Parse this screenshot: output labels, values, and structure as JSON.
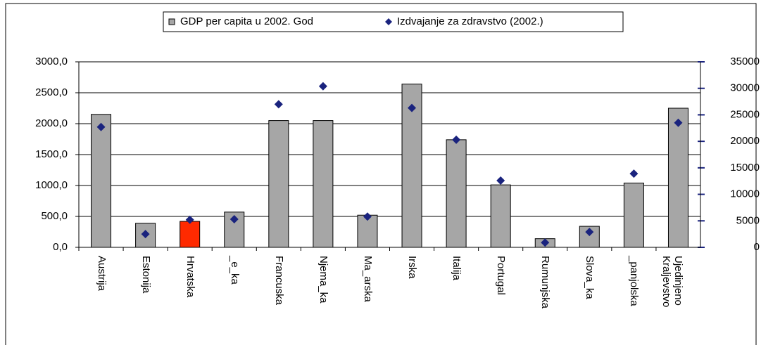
{
  "chart_data": {
    "type": "bar",
    "categories": [
      "Austrija",
      "Estonija",
      "Hrvatska",
      "_e_ka",
      "Francuska",
      "Njema_ka",
      "Ma_arska",
      "Irska",
      "Italija",
      "Portugal",
      "Rumunjska",
      "Slova_ka",
      "_panjolska",
      "Ujedinjeno Kraljevstvo"
    ],
    "series": [
      {
        "name": "GDP per capita u 2002. God",
        "type": "bar",
        "color": "#a6a6a6",
        "colors": [
          "#a6a6a6",
          "#a6a6a6",
          "#ff2a00",
          "#a6a6a6",
          "#a6a6a6",
          "#a6a6a6",
          "#a6a6a6",
          "#a6a6a6",
          "#a6a6a6",
          "#a6a6a6",
          "#a6a6a6",
          "#a6a6a6",
          "#a6a6a6",
          "#a6a6a6"
        ],
        "values": [
          2150,
          390,
          420,
          570,
          2050,
          2050,
          520,
          2640,
          1740,
          1010,
          140,
          340,
          1040,
          2250
        ]
      },
      {
        "name": "Izdvajanje za zdravstvo (2002.)",
        "type": "scatter",
        "axis": "y2",
        "color": "#1a237e",
        "values": [
          22700,
          2500,
          5200,
          5300,
          27000,
          30400,
          5800,
          26300,
          20300,
          12600,
          900,
          2900,
          13900,
          23500
        ]
      }
    ],
    "ylim": [
      0,
      3000
    ],
    "yticks": [
      {
        "value": 0,
        "label": "0,0"
      },
      {
        "value": 500,
        "label": "500,0"
      },
      {
        "value": 1000,
        "label": "1000,0"
      },
      {
        "value": 1500,
        "label": "1500,0"
      },
      {
        "value": 2000,
        "label": "2000,0"
      },
      {
        "value": 2500,
        "label": "2500,0"
      },
      {
        "value": 3000,
        "label": "3000,0"
      }
    ],
    "y2lim": [
      0,
      35000
    ],
    "y2ticks": [
      0,
      5000,
      10000,
      15000,
      20000,
      25000,
      30000,
      35000
    ],
    "grid": true
  }
}
